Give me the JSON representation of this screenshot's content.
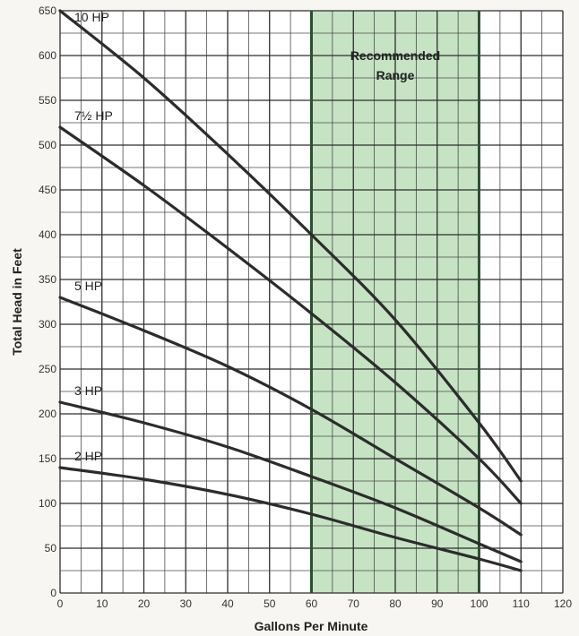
{
  "chart_data": {
    "type": "line",
    "xlabel": "Gallons Per Minute",
    "ylabel": "Total Head in Feet",
    "xlim": [
      0,
      120
    ],
    "ylim": [
      0,
      650
    ],
    "x_ticks": [
      0,
      10,
      20,
      30,
      40,
      50,
      60,
      70,
      80,
      90,
      100,
      110,
      120
    ],
    "y_ticks": [
      0,
      50,
      100,
      150,
      200,
      250,
      300,
      350,
      400,
      450,
      500,
      550,
      600,
      650
    ],
    "grid": true,
    "colors": {
      "line": "#2c2c2c",
      "band_fill": "#c6e3c4",
      "band_border": "#2f4f35"
    },
    "recommended_range": {
      "x": [
        60,
        100
      ],
      "label_line1": "Recommended",
      "label_line2": "Range"
    },
    "series": [
      {
        "name": "10 HP",
        "x": [
          0,
          20,
          40,
          60,
          80,
          100,
          110
        ],
        "y": [
          650,
          575,
          490,
          400,
          305,
          190,
          125
        ]
      },
      {
        "name": "7½ HP",
        "x": [
          0,
          20,
          40,
          60,
          80,
          100,
          110
        ],
        "y": [
          520,
          455,
          385,
          312,
          235,
          150,
          100
        ]
      },
      {
        "name": "5 HP",
        "x": [
          0,
          20,
          40,
          60,
          80,
          100,
          110
        ],
        "y": [
          330,
          293,
          253,
          205,
          150,
          95,
          65
        ]
      },
      {
        "name": "3 HP",
        "x": [
          0,
          20,
          40,
          60,
          80,
          100,
          110
        ],
        "y": [
          213,
          190,
          163,
          130,
          95,
          55,
          35
        ]
      },
      {
        "name": "2 HP",
        "x": [
          0,
          20,
          40,
          60,
          80,
          100,
          110
        ],
        "y": [
          140,
          127,
          110,
          88,
          62,
          38,
          25
        ]
      }
    ]
  }
}
